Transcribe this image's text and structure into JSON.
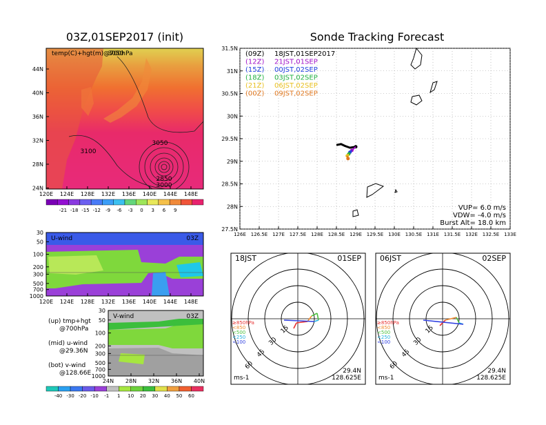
{
  "left_title": "03Z,01SEP2017 (init)",
  "right_title": "Sonde Tracking Forecast",
  "map_panel": {
    "label": "temp(C)+hgt(m)@700hPa",
    "lat_ticks": [
      "44N",
      "40N",
      "36N",
      "32N",
      "28N",
      "24N"
    ],
    "lon_ticks": [
      "120E",
      "124E",
      "128E",
      "132E",
      "136E",
      "140E",
      "144E",
      "148E"
    ],
    "contour_labels": [
      "3050",
      "3100",
      "3050",
      "2850",
      "3000"
    ],
    "colorbar_ticks": [
      "-21",
      "-18",
      "-15",
      "-12",
      "-9",
      "-6",
      "-3",
      "0",
      "3",
      "6",
      "9"
    ],
    "colorbar_colors": [
      "#7a00b5",
      "#9410d2",
      "#8a3ae0",
      "#6c60f0",
      "#4a7cf7",
      "#3c9ef7",
      "#3cc0f0",
      "#64d67c",
      "#9ee65a",
      "#e8e85a",
      "#f5c04a",
      "#f08a3a",
      "#f0553a",
      "#e8226e"
    ]
  },
  "u_panel": {
    "label": "U-wind",
    "time": "03Z",
    "y_ticks": [
      "30",
      "50",
      "100",
      "200",
      "300",
      "500",
      "700",
      "1000"
    ],
    "x_ticks": [
      "120E",
      "124E",
      "128E",
      "132E",
      "136E",
      "140E",
      "144E",
      "148E"
    ]
  },
  "v_panel": {
    "label": "V-wind",
    "time": "03Z",
    "y_ticks": [
      "30",
      "50",
      "100",
      "200",
      "300",
      "500",
      "700",
      "1000"
    ],
    "x_ticks": [
      "24N",
      "28N",
      "32N",
      "36N",
      "40N"
    ],
    "colorbar_ticks": [
      "-40",
      "-30",
      "-20",
      "-10",
      "-1",
      "1",
      "10",
      "20",
      "30",
      "40",
      "50",
      "60"
    ],
    "colorbar_colors": [
      "#1fc8b8",
      "#2aa0f0",
      "#3a78f0",
      "#6a5ae8",
      "#9a40d8",
      "#c0c0c0",
      "#a6e640",
      "#6ed23c",
      "#3cbe3c",
      "#e0e04a",
      "#f0a040",
      "#f06030",
      "#e83060"
    ]
  },
  "legend_notes": [
    {
      "title": "(up) tmp+hgt",
      "sub": "@700hPa"
    },
    {
      "title": "(mid) u-wind",
      "sub": "@29.36N"
    },
    {
      "title": "(bot) v-wind",
      "sub": "@128.66E"
    }
  ],
  "track_panel": {
    "y_ticks": [
      "31.5N",
      "31N",
      "30.5N",
      "30N",
      "29.5N",
      "29N",
      "28.5N",
      "28N",
      "27.5N"
    ],
    "x_ticks": [
      "126E",
      "126.5E",
      "127E",
      "127.5E",
      "128E",
      "128.5E",
      "129E",
      "129.5E",
      "130E",
      "130.5E",
      "131E",
      "131.5E",
      "132E",
      "132.5E",
      "133E"
    ],
    "legend": [
      {
        "code": "(09Z)",
        "text": "18JST,01SEP2017",
        "color": "#000000"
      },
      {
        "code": "(12Z)",
        "text": "21JST,01SEP",
        "color": "#a010c8"
      },
      {
        "code": "(15Z)",
        "text": "00JST,02SEP",
        "color": "#2040e0"
      },
      {
        "code": "(18Z)",
        "text": "03JST,02SEP",
        "color": "#20b040"
      },
      {
        "code": "(21Z)",
        "text": "06JST,02SEP",
        "color": "#e8c020"
      },
      {
        "code": "(00Z)",
        "text": "09JST,02SEP",
        "color": "#e07820"
      }
    ],
    "params": [
      "VUP=  6.0  m/s",
      "VDW= -4.0  m/s",
      "Burst Alt=  18.0  km"
    ]
  },
  "hodographs": [
    {
      "left": "18JST",
      "right": "01SEP",
      "lat": "29.4N",
      "lon": "128.625E",
      "unit": "ms-1",
      "ring_labels": [
        "15",
        "30",
        "45",
        "60"
      ],
      "levels": [
        {
          "t": "≥850hPa",
          "c": "#e83030"
        },
        {
          "t": "<850",
          "c": "#f08a30"
        },
        {
          "t": "<500",
          "c": "#4cc040"
        },
        {
          "t": "<250",
          "c": "#20b0e0"
        },
        {
          "t": "<100",
          "c": "#3040e0"
        }
      ]
    },
    {
      "left": "06JST",
      "right": "02SEP",
      "lat": "29.4N",
      "lon": "128.625E",
      "unit": "ms-1",
      "ring_labels": [
        "15",
        "30",
        "45",
        "60"
      ],
      "levels": [
        {
          "t": "≥850hPa",
          "c": "#e83030"
        },
        {
          "t": "<850",
          "c": "#f08a30"
        },
        {
          "t": "<500",
          "c": "#4cc040"
        },
        {
          "t": "<250",
          "c": "#20b0e0"
        },
        {
          "t": "<100",
          "c": "#3040e0"
        }
      ]
    }
  ],
  "chart_data": [
    {
      "type": "heatmap",
      "title": "03Z,01SEP2017 (init)",
      "label": "temp(C)+hgt(m)@700hPa",
      "x_range_deg": [
        120,
        150
      ],
      "y_range_deg": [
        22,
        48
      ],
      "contours": [
        {
          "value": 3050
        },
        {
          "value": 3100
        },
        {
          "value": 3050
        },
        {
          "value": 2850
        },
        {
          "value": 3000
        }
      ]
    },
    {
      "type": "heatmap",
      "label": "U-wind",
      "time": "03Z",
      "ylabel_levels": [
        30,
        50,
        100,
        200,
        300,
        500,
        700,
        1000
      ],
      "x_range_deg": [
        120,
        150
      ]
    },
    {
      "type": "heatmap",
      "label": "V-wind",
      "time": "03Z",
      "ylabel_levels": [
        30,
        50,
        100,
        200,
        300,
        500,
        700,
        1000
      ],
      "x_range_deg": [
        22,
        40
      ]
    },
    {
      "type": "scatter",
      "title": "Sonde Tracking Forecast",
      "xlim": [
        126,
        133
      ],
      "ylim": [
        27.5,
        31.5
      ],
      "series": [
        {
          "name": "18JST,01SEP2017",
          "x": [
            128.5,
            128.62,
            128.72,
            128.85,
            129.0
          ],
          "y": [
            29.36,
            29.38,
            29.34,
            29.3,
            29.32
          ]
        },
        {
          "name": "21JST,01SEP",
          "x": [
            129.0,
            128.95,
            128.9
          ],
          "y": [
            29.32,
            29.28,
            29.24
          ]
        },
        {
          "name": "00JST,02SEP",
          "x": [
            128.9,
            128.85
          ],
          "y": [
            29.24,
            29.2
          ]
        },
        {
          "name": "03JST,02SEP",
          "x": [
            128.85,
            128.82
          ],
          "y": [
            29.2,
            29.16
          ]
        },
        {
          "name": "06JST,02SEP",
          "x": [
            128.82,
            128.78
          ],
          "y": [
            29.16,
            29.12
          ]
        },
        {
          "name": "09JST,02SEP",
          "x": [
            128.78,
            128.8
          ],
          "y": [
            29.12,
            29.06
          ]
        }
      ]
    }
  ]
}
